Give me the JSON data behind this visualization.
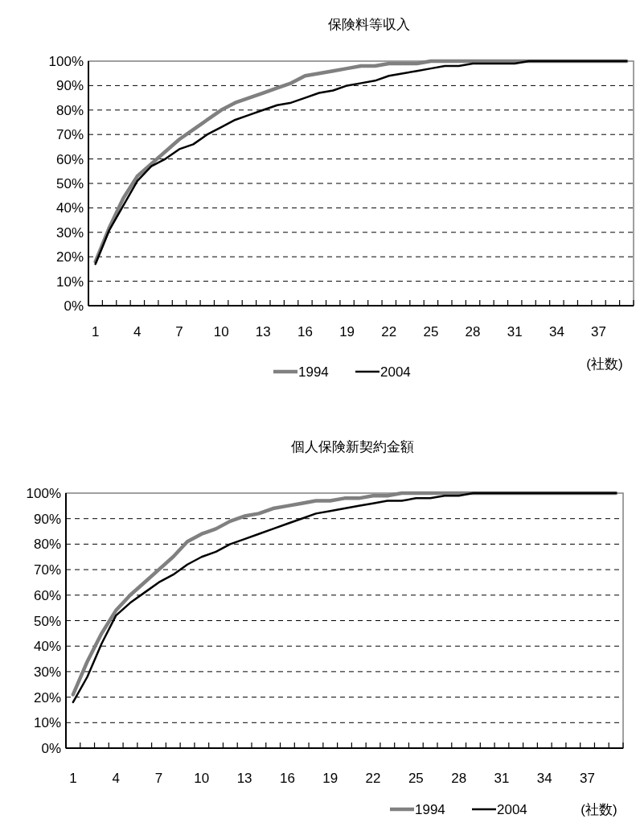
{
  "chart_data": [
    {
      "type": "line",
      "title": "保険料等収入",
      "xlabel": "(社数)",
      "categories": [
        "1",
        null,
        null,
        "4",
        null,
        null,
        "7",
        null,
        null,
        "10",
        null,
        null,
        "13",
        null,
        null,
        "16",
        null,
        null,
        "19",
        null,
        null,
        "22",
        null,
        null,
        "25",
        null,
        null,
        "28",
        null,
        null,
        "31",
        null,
        null,
        "34",
        null,
        null,
        "37",
        null,
        null
      ],
      "ylim": [
        0,
        100
      ],
      "yticks": [
        {
          "value": 0,
          "label": "0%"
        },
        {
          "value": 10,
          "label": "10%"
        },
        {
          "value": 20,
          "label": "20%"
        },
        {
          "value": 30,
          "label": "30%"
        },
        {
          "value": 40,
          "label": "40%"
        },
        {
          "value": 50,
          "label": "50%"
        },
        {
          "value": 60,
          "label": "60%"
        },
        {
          "value": 70,
          "label": "70%"
        },
        {
          "value": 80,
          "label": "80%"
        },
        {
          "value": 90,
          "label": "90%"
        },
        {
          "value": 100,
          "label": "100%"
        }
      ],
      "grid": "y",
      "legend": "bottom",
      "line_style": "solid",
      "marker": "none",
      "series": [
        {
          "name": "1994",
          "color": "#808080",
          "values": [
            18,
            32,
            44,
            53,
            58,
            63,
            68,
            72,
            76,
            80,
            83,
            85,
            87,
            89,
            91,
            94,
            95,
            96,
            97,
            98,
            98,
            99,
            99,
            99,
            100,
            100,
            100,
            100,
            100,
            100,
            100,
            100,
            100,
            100,
            100,
            100,
            100,
            100,
            100
          ]
        },
        {
          "name": "2004",
          "color": "#000000",
          "values": [
            17,
            31,
            41,
            51,
            57,
            60,
            64,
            66,
            70,
            73,
            76,
            78,
            80,
            82,
            83,
            85,
            87,
            88,
            90,
            91,
            92,
            94,
            95,
            96,
            97,
            98,
            98,
            99,
            99,
            99,
            99,
            100,
            100,
            100,
            100,
            100,
            100,
            100,
            100
          ]
        }
      ]
    },
    {
      "type": "line",
      "title": "個人保険新契約金額",
      "xlabel": "(社数)",
      "categories": [
        "1",
        null,
        null,
        "4",
        null,
        null,
        "7",
        null,
        null,
        "10",
        null,
        null,
        "13",
        null,
        null,
        "16",
        null,
        null,
        "19",
        null,
        null,
        "22",
        null,
        null,
        "25",
        null,
        null,
        "28",
        null,
        null,
        "31",
        null,
        null,
        "34",
        null,
        null,
        "37",
        null,
        null
      ],
      "ylim": [
        0,
        100
      ],
      "yticks": [
        {
          "value": 0,
          "label": "0%"
        },
        {
          "value": 10,
          "label": "10%"
        },
        {
          "value": 20,
          "label": "20%"
        },
        {
          "value": 30,
          "label": "30%"
        },
        {
          "value": 40,
          "label": "40%"
        },
        {
          "value": 50,
          "label": "50%"
        },
        {
          "value": 60,
          "label": "60%"
        },
        {
          "value": 70,
          "label": "70%"
        },
        {
          "value": 80,
          "label": "80%"
        },
        {
          "value": 90,
          "label": "90%"
        },
        {
          "value": 100,
          "label": "100%"
        }
      ],
      "grid": "y",
      "legend": "bottom",
      "line_style": "solid",
      "marker": "none",
      "series": [
        {
          "name": "1994",
          "color": "#808080",
          "values": [
            21,
            34,
            45,
            54,
            60,
            65,
            70,
            75,
            81,
            84,
            86,
            89,
            91,
            92,
            94,
            95,
            96,
            97,
            97,
            98,
            98,
            99,
            99,
            100,
            100,
            100,
            100,
            100,
            100,
            100,
            100,
            100,
            100,
            100,
            100,
            100,
            100,
            100,
            100
          ]
        },
        {
          "name": "2004",
          "color": "#000000",
          "values": [
            18,
            28,
            41,
            52,
            57,
            61,
            65,
            68,
            72,
            75,
            77,
            80,
            82,
            84,
            86,
            88,
            90,
            92,
            93,
            94,
            95,
            96,
            97,
            97,
            98,
            98,
            99,
            99,
            100,
            100,
            100,
            100,
            100,
            100,
            100,
            100,
            100,
            100,
            100
          ]
        }
      ]
    }
  ]
}
